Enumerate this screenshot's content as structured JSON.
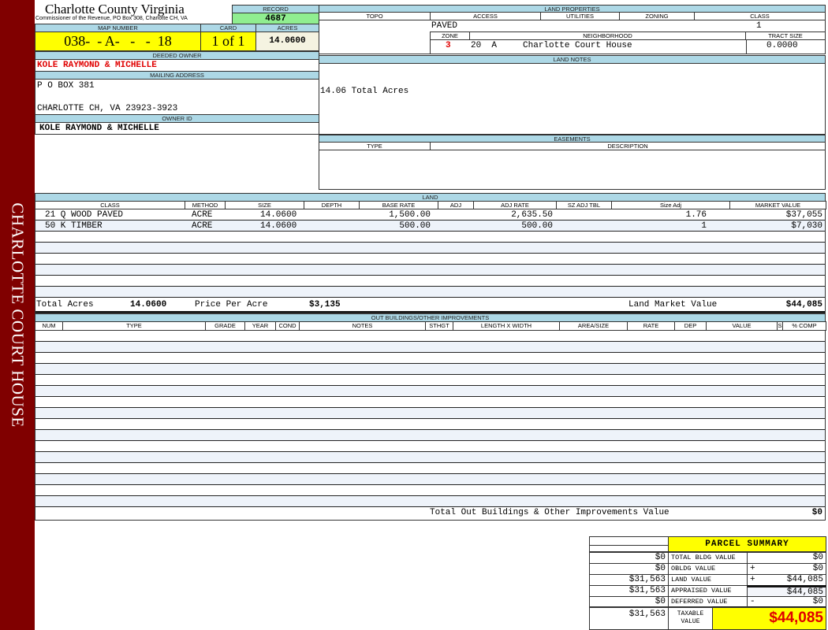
{
  "sidebar": {
    "label": "CHARLOTTE COURT HOUSE"
  },
  "header": {
    "title": "Charlotte County Virginia",
    "subtitle": "Commissioner of the Revenue, PO Box 308, Charlotte CH, VA",
    "record_label": "RECORD",
    "record": "4687"
  },
  "parcel": {
    "map_number_label": "MAP NUMBER",
    "map_number": "038-  - A-   -   -  18",
    "card_label": "CARD",
    "card": "1 of 1",
    "acres_label": "ACRES",
    "acres": "14.0600"
  },
  "owner": {
    "deeded_label": "DEEDED OWNER",
    "deeded": "KOLE RAYMOND & MICHELLE",
    "mailing_label": "MAILING ADDRESS",
    "address_line1": "P O BOX 381",
    "address_line2": "CHARLOTTE CH, VA 23923-3923",
    "owner_id_label": "OWNER ID",
    "owner_id": "KOLE RAYMOND & MICHELLE"
  },
  "land_properties": {
    "title": "LAND PROPERTIES",
    "topo_label": "TOPO",
    "access_label": "ACCESS",
    "utilities_label": "UTILITIES",
    "zoning_label": "ZONING",
    "class_label": "CLASS",
    "access": "PAVED",
    "class": "1",
    "zone_label": "ZONE",
    "neighborhood_label": "NEIGHBORHOOD",
    "tract_label": "TRACT SIZE",
    "zone": "3",
    "neighborhood": "20  A     Charlotte Court House",
    "tract_size": "0.0000"
  },
  "land_notes": {
    "title": "LAND NOTES",
    "text": "14.06 Total Acres"
  },
  "easements": {
    "title": "EASEMENTS",
    "type_label": "TYPE",
    "description_label": "DESCRIPTION"
  },
  "land": {
    "title": "LAND",
    "columns": [
      "CLASS",
      "METHOD",
      "SIZE",
      "DEPTH",
      "BASE RATE",
      "ADJ",
      "ADJ RATE",
      "SZ ADJ TBL",
      "Size Adj",
      "MARKET VALUE"
    ],
    "rows": [
      {
        "class": "21 Q WOOD PAVED",
        "method": "ACRE",
        "size": "14.0600",
        "base_rate": "1,500.00",
        "adj_rate": "2,635.50",
        "size_adj": "1.76",
        "market_value": "$37,055"
      },
      {
        "class": "50 K TIMBER",
        "method": "ACRE",
        "size": "14.0600",
        "base_rate": "500.00",
        "adj_rate": "500.00",
        "size_adj": "1",
        "market_value": "$7,030"
      }
    ],
    "total_acres_label": "Total Acres",
    "total_acres": "14.0600",
    "price_per_acre_label": "Price Per Acre",
    "price_per_acre": "$3,135",
    "market_value_label": "Land Market Value",
    "market_value": "$44,085"
  },
  "outbuildings": {
    "title": "OUT BUILDINGS/OTHER IMPROVEMENTS",
    "columns": [
      "NUM",
      "TYPE",
      "GRADE",
      "YEAR",
      "COND",
      "NOTES",
      "STHGT",
      "LENGTH X WIDTH",
      "AREA/SIZE",
      "RATE",
      "DEP",
      "VALUE",
      "S",
      "% COMP"
    ],
    "total_label": "Total Out Buildings & Other Improvements Value",
    "total": "$0"
  },
  "summary": {
    "title": "PARCEL SUMMARY",
    "rows": [
      {
        "prior": "$0",
        "label": "TOTAL BLDG VALUE",
        "op": "",
        "value": "$0"
      },
      {
        "prior": "$0",
        "label": "OBLDG VALUE",
        "op": "+",
        "value": "$0"
      },
      {
        "prior": "$31,563",
        "label": "LAND VALUE",
        "op": "+",
        "value": "$44,085"
      },
      {
        "prior": "$31,563",
        "label": "APPRAISED VALUE",
        "op": "",
        "value": "$44,085"
      },
      {
        "prior": "$0",
        "label": "DEFERRED VALUE",
        "op": "-",
        "value": "$0"
      }
    ],
    "taxable_prior": "$31,563",
    "taxable_label": "TAXABLE VALUE",
    "taxable": "$44,085"
  },
  "colors": {
    "sidebar": "#800000",
    "header": "#add8e6",
    "highlight": "#ffff00",
    "record": "#90ee90",
    "accent_red": "#e00000"
  }
}
